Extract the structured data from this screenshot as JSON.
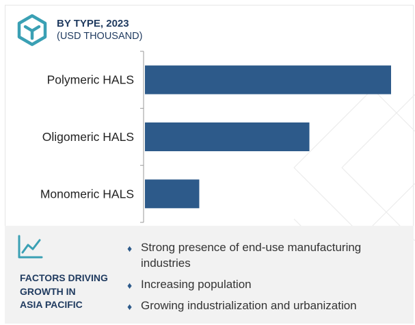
{
  "header": {
    "icon": "cube-outline-icon",
    "title": "BY TYPE, 2023",
    "subtitle": "(USD THOUSAND)"
  },
  "chart_data": {
    "type": "bar",
    "orientation": "horizontal",
    "categories": [
      "Polymeric HALS",
      "Oligomeric HALS",
      "Monomeric HALS"
    ],
    "values": [
      100,
      67,
      22.5
    ],
    "title": "BY TYPE, 2023",
    "subtitle": "(USD THOUSAND)",
    "xlabel": "",
    "ylabel": "",
    "xlim": [
      0,
      100
    ],
    "grid": false,
    "legend": "none",
    "bar_color": "#2d5a8a"
  },
  "factors": {
    "icon": "trend-line-icon",
    "title_lines": [
      "FACTORS DRIVING",
      "GROWTH IN",
      "ASIA PACIFIC"
    ],
    "bullets": [
      "Strong presence of end-use manufacturing industries",
      "Increasing population",
      "Growing industrialization and urbanization"
    ]
  },
  "colors": {
    "accent": "#2d5a8a",
    "heading": "#1f3a5f",
    "icon_teal": "#3aa0b4",
    "panel_bg": "#f2f2f2"
  }
}
